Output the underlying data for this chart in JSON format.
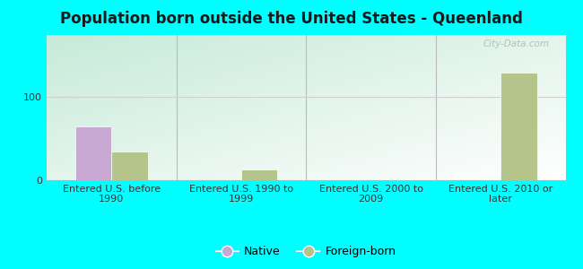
{
  "title": "Population born outside the United States - Queenland",
  "categories": [
    "Entered U.S. before\n1990",
    "Entered U.S. 1990 to\n1999",
    "Entered U.S. 2000 to\n2009",
    "Entered U.S. 2010 or\nlater"
  ],
  "native_values": [
    65,
    0,
    0,
    0
  ],
  "foreign_values": [
    35,
    13,
    0,
    130
  ],
  "native_color": "#c9a8d4",
  "foreign_color": "#b5c48a",
  "bar_width": 0.28,
  "ylim": [
    0,
    175
  ],
  "yticks": [
    0,
    100
  ],
  "background_color": "#00ffff",
  "grid_color": "#d0d0d0",
  "title_fontsize": 12,
  "tick_fontsize": 8,
  "legend_labels": [
    "Native",
    "Foreign-born"
  ],
  "watermark": "City-Data.com",
  "separator_color": "#bbbbbb"
}
